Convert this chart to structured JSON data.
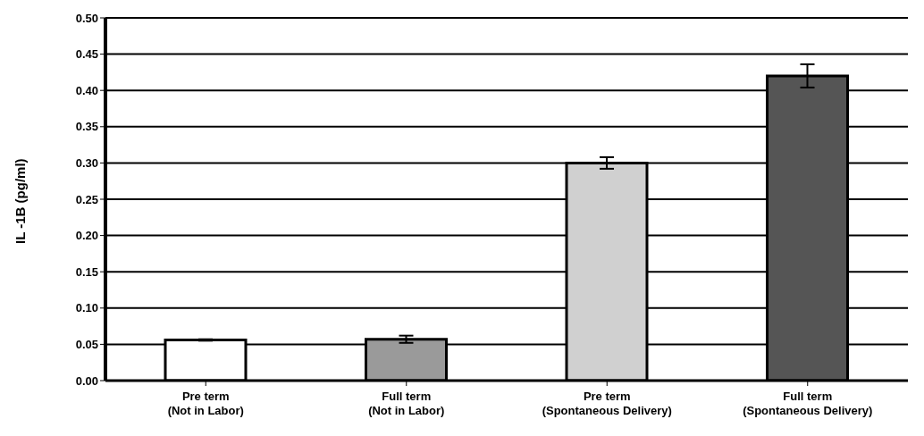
{
  "chart_data": {
    "type": "bar",
    "ylabel": "IL -1B (pg/ml)",
    "categories": [
      "Pre term\n(Not in Labor)",
      "Full term\n(Not in Labor)",
      "Pre term\n(Spontaneous Delivery)",
      "Full term\n(Spontaneous Delivery)"
    ],
    "values": [
      0.056,
      0.057,
      0.3,
      0.42
    ],
    "errors": [
      0.001,
      0.005,
      0.008,
      0.016
    ],
    "colors": [
      "#ffffff",
      "#9a9a9a",
      "#d0d0d0",
      "#555555"
    ],
    "ylim": [
      0,
      0.5
    ],
    "yticks": [
      {
        "value": 0,
        "label": "0.00"
      },
      {
        "value": 0.05,
        "label": "0.05"
      },
      {
        "value": 0.1,
        "label": "0.10"
      },
      {
        "value": 0.15,
        "label": "0.15"
      },
      {
        "value": 0.2,
        "label": "0.20"
      },
      {
        "value": 0.25,
        "label": "0.25"
      },
      {
        "value": 0.3,
        "label": "0.30"
      },
      {
        "value": 0.35,
        "label": "0.35"
      },
      {
        "value": 0.4,
        "label": "0.40"
      },
      {
        "value": 0.45,
        "label": "0.45"
      },
      {
        "value": 0.5,
        "label": "0.50"
      }
    ],
    "grid": "y",
    "legend": false
  }
}
